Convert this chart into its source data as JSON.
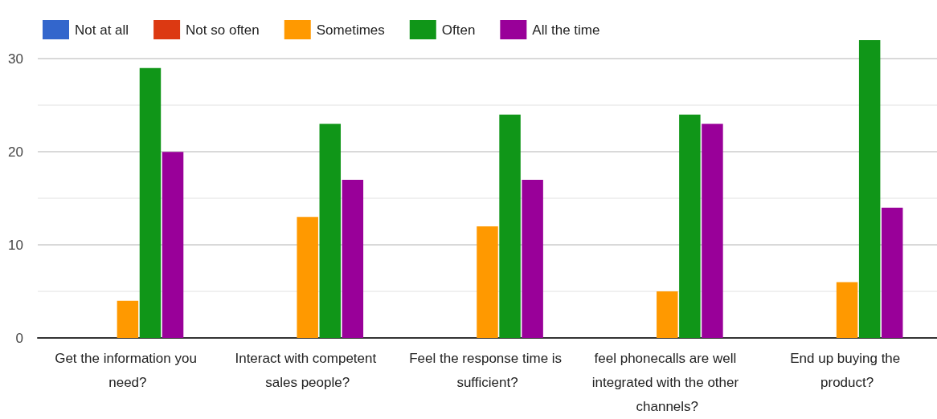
{
  "chart_data": {
    "type": "bar",
    "categories": [
      "Get the information you need?",
      "Interact with competent sales people?",
      "Feel the response time is sufficient?",
      "feel phonecalls are well integrated with the other channels?",
      "End up buying the product?"
    ],
    "series": [
      {
        "name": "Not at all",
        "color": "#3366cc",
        "values": [
          0,
          0,
          0,
          0,
          0
        ]
      },
      {
        "name": "Not so often",
        "color": "#dc3912",
        "values": [
          0,
          0,
          0,
          0,
          0
        ]
      },
      {
        "name": "Sometimes",
        "color": "#ff9900",
        "values": [
          4,
          13,
          12,
          5,
          6
        ]
      },
      {
        "name": "Often",
        "color": "#109618",
        "values": [
          29,
          23,
          24,
          24,
          32
        ]
      },
      {
        "name": "All the time",
        "color": "#990099",
        "values": [
          20,
          17,
          17,
          23,
          14
        ]
      }
    ],
    "ylim": [
      0,
      32
    ],
    "yticks": [
      0,
      {
        "value": 5,
        "label": null
      },
      10,
      {
        "value": 15,
        "label": null
      },
      20,
      {
        "value": 25,
        "label": null
      },
      30
    ],
    "grid": "y",
    "legend": "top left"
  }
}
